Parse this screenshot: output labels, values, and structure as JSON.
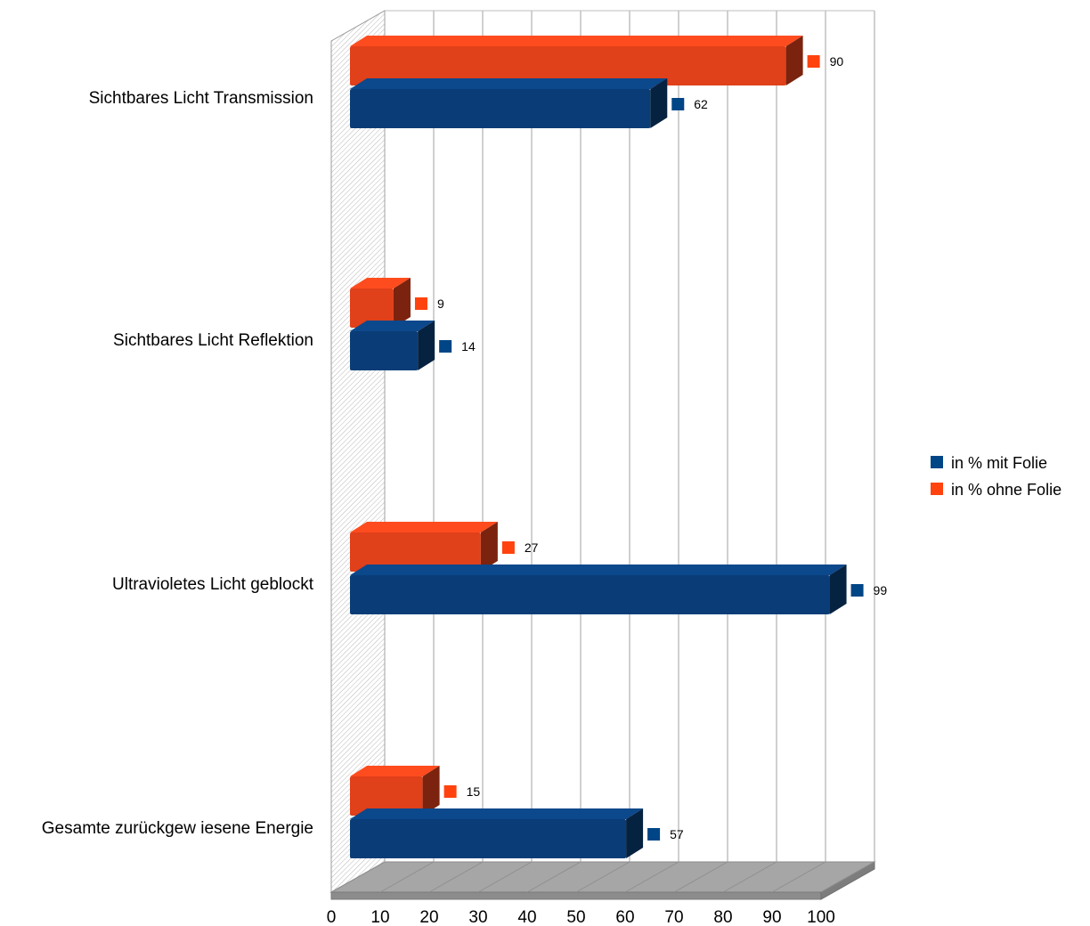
{
  "chart_data": {
    "type": "bar",
    "orientation": "horizontal",
    "three_d": true,
    "categories": [
      "Sichtbares Licht Transmission",
      "Sichtbares Licht Reflektion",
      "Ultravioletes Licht geblockt",
      "Gesamte zurückgew iesene Energie"
    ],
    "series": [
      {
        "name": "in % mit Folie",
        "values": [
          62,
          14,
          99,
          57
        ],
        "color": "#0a3d77"
      },
      {
        "name": "in % ohne Folie",
        "values": [
          90,
          9,
          27,
          15
        ],
        "color": "#e0401a"
      }
    ],
    "marker_colors": {
      "in % mit Folie": "#004586",
      "in % ohne Folie": "#ff420e"
    },
    "xlim": [
      0,
      100
    ],
    "xticks": [
      0,
      10,
      20,
      30,
      40,
      50,
      60,
      70,
      80,
      90,
      100
    ],
    "grid": true,
    "legend_position": "right"
  }
}
